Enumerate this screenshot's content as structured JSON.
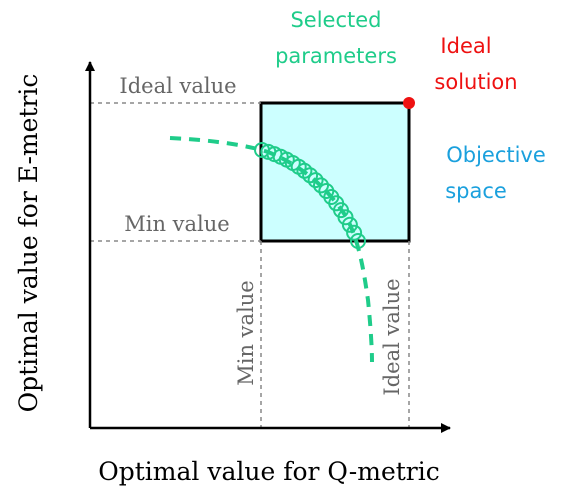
{
  "axes": {
    "x_label": "Optimal value for Q-metric",
    "y_label": "Optimal value for E-metric"
  },
  "guides": {
    "y_ideal_label": "Ideal value",
    "y_min_label": "Min value",
    "x_min_label": "Min value",
    "x_ideal_label": "Ideal value"
  },
  "annotations": {
    "selected_line1": "Selected",
    "selected_line2": "parameters",
    "ideal_line1": "Ideal",
    "ideal_line2": "solution",
    "objective_line1": "Objective",
    "objective_line2": "space"
  },
  "colors": {
    "selected": "#1fcc8a",
    "ideal": "#ee1111",
    "objective_text": "#1aa0dd",
    "objective_fill": "#ccffff",
    "guide_text": "#666666",
    "axis": "#000000"
  },
  "icons": {
    "ideal_point": "red-dot",
    "selected_points": "green-circle-markers",
    "pareto_front": "dashed-green-curve"
  }
}
